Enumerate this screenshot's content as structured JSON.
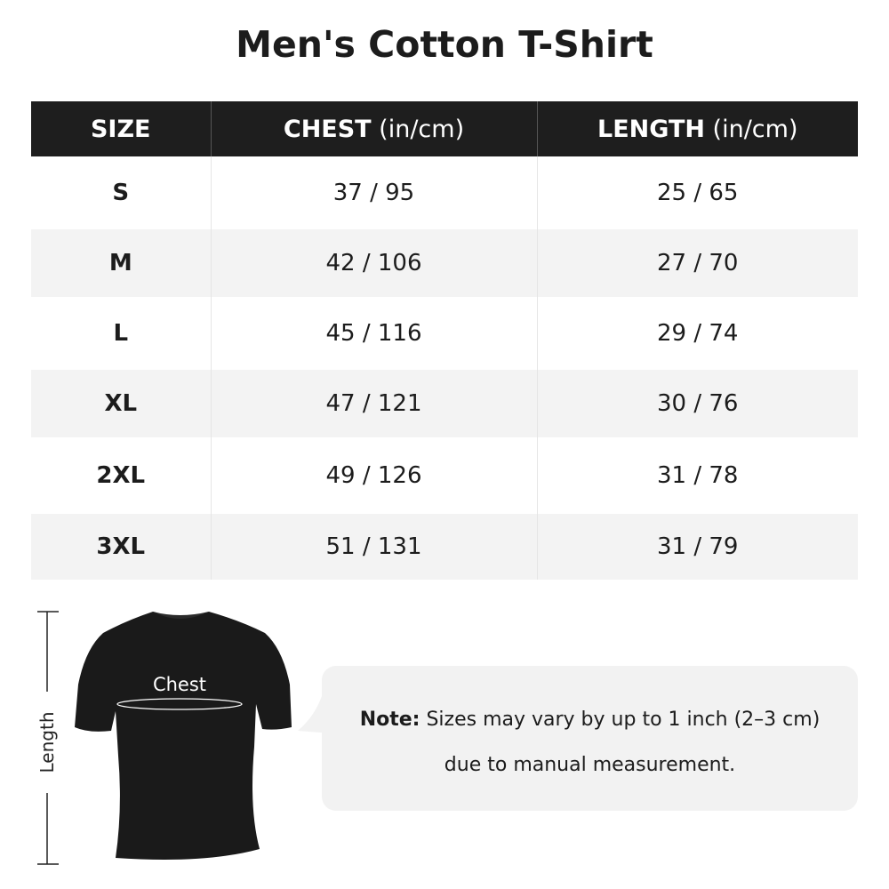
{
  "title": "Men's Cotton T-Shirt",
  "table": {
    "headers": [
      {
        "main": "SIZE",
        "unit": ""
      },
      {
        "main": "CHEST",
        "unit": " (in/cm)"
      },
      {
        "main": "LENGTH",
        "unit": " (in/cm)"
      }
    ],
    "rows": [
      [
        "S",
        "37 / 95",
        "25 / 65"
      ],
      [
        "M",
        "42 / 106",
        "27 / 70"
      ],
      [
        "L",
        "45 / 116",
        "29 / 74"
      ],
      [
        "XL",
        "47 / 121",
        "30 / 76"
      ],
      [
        "2XL",
        "49 / 126",
        "31 / 78"
      ],
      [
        "3XL",
        "51 / 131",
        "31 / 79"
      ]
    ]
  },
  "diagram": {
    "chest_label": "Chest",
    "length_label": "Length",
    "shirt_color": "#1a1a1a"
  },
  "note": {
    "label": "Note:",
    "line1": " Sizes may vary by up to 1 inch (2–3 cm)",
    "line2": "due to manual measurement."
  }
}
